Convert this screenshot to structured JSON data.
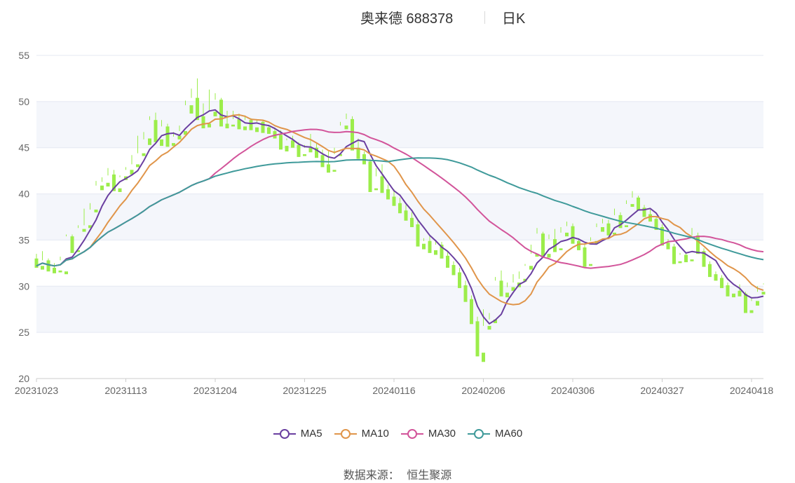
{
  "header": {
    "stock_name": "奥来德 688378",
    "period": "日K"
  },
  "source": {
    "label": "数据来源：",
    "provider": "恒生聚源"
  },
  "chart_data": {
    "type": "candlestick",
    "title": "奥来德 688378 日K",
    "ylim": [
      20,
      55
    ],
    "yticks": [
      20,
      25,
      30,
      35,
      40,
      45,
      50,
      55
    ],
    "xtick_labels": [
      "20231023",
      "20231113",
      "20231204",
      "20231225",
      "20240116",
      "20240206",
      "20240306",
      "20240327",
      "20240418"
    ],
    "xtick_index": [
      0,
      15,
      30,
      45,
      60,
      75,
      90,
      105,
      120
    ],
    "colors": {
      "up": "#f08080",
      "down": "#9ced4b",
      "grid_band": "#f4f6fb",
      "grid_line": "#e4e8f2",
      "axis": "#cccccc"
    },
    "legend": [
      "MA5",
      "MA10",
      "MA30",
      "MA60"
    ],
    "legend_colors": [
      "#6a3fa0",
      "#e0954a",
      "#d2549a",
      "#3f9a9a"
    ],
    "ohlc": [
      [
        33.0,
        33.5,
        32.2,
        32.0
      ],
      [
        32.2,
        33.8,
        32.8,
        31.8
      ],
      [
        32.8,
        33.0,
        32.0,
        31.6
      ],
      [
        32.0,
        32.5,
        31.8,
        31.4
      ],
      [
        31.7,
        33.2,
        32.8,
        31.5
      ],
      [
        31.6,
        35.6,
        35.4,
        31.3
      ],
      [
        35.4,
        35.6,
        33.8,
        33.6
      ],
      [
        33.9,
        36.6,
        36.3,
        33.7
      ],
      [
        36.2,
        38.4,
        36.6,
        35.9
      ],
      [
        36.6,
        39.0,
        38.3,
        36.3
      ],
      [
        38.3,
        41.4,
        40.9,
        38.0
      ],
      [
        40.9,
        41.8,
        41.3,
        40.4
      ],
      [
        41.2,
        42.8,
        42.0,
        40.8
      ],
      [
        42.1,
        42.6,
        40.6,
        40.3
      ],
      [
        40.6,
        42.0,
        41.8,
        40.2
      ],
      [
        41.9,
        42.9,
        42.6,
        41.5
      ],
      [
        42.6,
        44.2,
        43.2,
        42.1
      ],
      [
        43.2,
        46.3,
        44.4,
        42.9
      ],
      [
        44.4,
        46.7,
        45.9,
        44.1
      ],
      [
        46.0,
        48.4,
        48.0,
        45.3
      ],
      [
        48.0,
        48.8,
        45.9,
        45.6
      ],
      [
        45.9,
        48.0,
        47.3,
        45.2
      ],
      [
        47.3,
        47.6,
        45.5,
        45.1
      ],
      [
        45.5,
        46.7,
        46.2,
        45.2
      ],
      [
        46.3,
        47.4,
        46.8,
        45.9
      ],
      [
        46.8,
        50.1,
        49.6,
        46.4
      ],
      [
        49.6,
        51.4,
        50.4,
        48.7
      ],
      [
        50.4,
        52.5,
        48.4,
        48.0
      ],
      [
        48.4,
        49.8,
        47.6,
        47.1
      ],
      [
        47.6,
        51.3,
        48.9,
        47.2
      ],
      [
        48.9,
        50.9,
        50.2,
        48.4
      ],
      [
        50.2,
        50.4,
        47.6,
        47.3
      ],
      [
        47.6,
        49.0,
        47.5,
        47.1
      ],
      [
        47.5,
        49.0,
        48.1,
        47.3
      ],
      [
        48.1,
        48.7,
        47.3,
        47.0
      ],
      [
        47.3,
        48.5,
        48.0,
        46.9
      ],
      [
        48.0,
        48.2,
        47.2,
        46.9
      ],
      [
        47.2,
        48.1,
        47.8,
        46.7
      ],
      [
        47.8,
        48.0,
        47.2,
        46.6
      ],
      [
        47.2,
        47.4,
        46.8,
        46.5
      ],
      [
        46.8,
        47.2,
        46.4,
        46.0
      ],
      [
        46.4,
        46.9,
        45.2,
        44.8
      ],
      [
        45.2,
        46.0,
        45.8,
        44.6
      ],
      [
        45.8,
        46.3,
        45.3,
        45.0
      ],
      [
        45.3,
        45.6,
        44.3,
        44.0
      ],
      [
        44.3,
        45.3,
        45.0,
        44.1
      ],
      [
        45.0,
        46.5,
        45.0,
        44.5
      ],
      [
        45.0,
        45.5,
        44.2,
        43.9
      ],
      [
        44.2,
        44.8,
        43.2,
        42.9
      ],
      [
        43.2,
        44.6,
        42.6,
        42.3
      ],
      [
        42.6,
        45.0,
        44.3,
        42.4
      ],
      [
        44.3,
        47.8,
        47.4,
        44.1
      ],
      [
        47.4,
        48.7,
        48.1,
        47.0
      ],
      [
        48.1,
        48.4,
        45.0,
        44.7
      ],
      [
        45.0,
        46.0,
        44.3,
        43.8
      ],
      [
        44.3,
        44.6,
        43.5,
        43.2
      ],
      [
        43.5,
        43.8,
        40.6,
        40.2
      ],
      [
        40.6,
        42.8,
        41.9,
        40.4
      ],
      [
        41.9,
        43.2,
        40.5,
        40.1
      ],
      [
        40.5,
        41.0,
        39.7,
        39.4
      ],
      [
        39.7,
        40.5,
        39.0,
        38.7
      ],
      [
        39.0,
        39.6,
        38.2,
        37.9
      ],
      [
        38.2,
        38.8,
        37.4,
        37.1
      ],
      [
        37.4,
        38.0,
        36.7,
        36.4
      ],
      [
        36.7,
        37.2,
        34.6,
        34.3
      ],
      [
        34.6,
        35.2,
        34.9,
        34.0
      ],
      [
        34.9,
        35.5,
        33.9,
        33.6
      ],
      [
        33.9,
        35.0,
        34.5,
        33.4
      ],
      [
        34.5,
        34.8,
        33.3,
        33.0
      ],
      [
        33.3,
        33.8,
        32.3,
        32.0
      ],
      [
        32.3,
        32.7,
        31.5,
        31.2
      ],
      [
        31.5,
        32.0,
        30.1,
        29.8
      ],
      [
        30.1,
        30.6,
        28.6,
        28.3
      ],
      [
        28.6,
        29.0,
        26.2,
        25.9
      ],
      [
        26.2,
        26.7,
        22.8,
        22.4
      ],
      [
        22.8,
        27.5,
        25.7,
        21.8
      ],
      [
        25.7,
        27.1,
        26.4,
        25.3
      ],
      [
        26.4,
        31.0,
        30.6,
        26.0
      ],
      [
        30.6,
        31.7,
        29.3,
        28.9
      ],
      [
        29.3,
        30.4,
        29.9,
        28.8
      ],
      [
        29.9,
        31.3,
        30.4,
        29.5
      ],
      [
        30.4,
        31.6,
        30.8,
        29.9
      ],
      [
        30.8,
        32.4,
        32.2,
        30.5
      ],
      [
        32.2,
        34.5,
        33.5,
        31.8
      ],
      [
        33.5,
        36.3,
        35.7,
        33.2
      ],
      [
        35.7,
        35.9,
        33.5,
        33.2
      ],
      [
        33.5,
        35.6,
        35.1,
        33.1
      ],
      [
        35.1,
        36.2,
        34.1,
        33.7
      ],
      [
        34.1,
        36.4,
        35.8,
        33.9
      ],
      [
        35.8,
        37.0,
        36.5,
        35.4
      ],
      [
        36.5,
        36.8,
        34.9,
        34.6
      ],
      [
        34.9,
        35.2,
        34.2,
        33.9
      ],
      [
        34.2,
        34.6,
        32.4,
        32.1
      ],
      [
        32.4,
        35.3,
        34.9,
        32.2
      ],
      [
        34.9,
        36.8,
        36.4,
        34.6
      ],
      [
        36.4,
        37.3,
        36.8,
        35.9
      ],
      [
        36.8,
        37.2,
        35.8,
        35.5
      ],
      [
        35.8,
        38.4,
        37.7,
        35.6
      ],
      [
        37.7,
        38.0,
        36.6,
        36.3
      ],
      [
        36.6,
        39.3,
        38.9,
        36.4
      ],
      [
        38.9,
        40.3,
        39.6,
        38.6
      ],
      [
        39.6,
        39.8,
        38.5,
        38.2
      ],
      [
        38.5,
        38.8,
        37.8,
        37.5
      ],
      [
        37.8,
        38.3,
        37.3,
        37.0
      ],
      [
        37.3,
        37.6,
        36.4,
        36.1
      ],
      [
        36.4,
        36.7,
        34.7,
        34.4
      ],
      [
        34.7,
        35.1,
        34.3,
        34.0
      ],
      [
        34.3,
        34.6,
        32.7,
        32.4
      ],
      [
        32.7,
        33.6,
        33.4,
        32.5
      ],
      [
        33.4,
        33.7,
        32.9,
        32.6
      ],
      [
        32.9,
        36.3,
        35.5,
        32.7
      ],
      [
        35.5,
        35.8,
        33.8,
        33.5
      ],
      [
        33.8,
        34.1,
        32.4,
        32.1
      ],
      [
        32.4,
        32.7,
        31.3,
        31.0
      ],
      [
        31.3,
        31.6,
        30.9,
        30.6
      ],
      [
        30.9,
        31.2,
        30.1,
        29.8
      ],
      [
        30.1,
        30.4,
        29.2,
        28.9
      ],
      [
        29.2,
        29.5,
        29.5,
        28.8
      ],
      [
        29.5,
        30.2,
        29.2,
        28.9
      ],
      [
        29.2,
        29.4,
        27.4,
        27.1
      ],
      [
        27.4,
        28.7,
        28.4,
        27.1
      ],
      [
        28.4,
        30.0,
        29.4,
        27.9
      ],
      [
        29.4,
        30.3,
        30.2,
        29.1
      ]
    ]
  }
}
